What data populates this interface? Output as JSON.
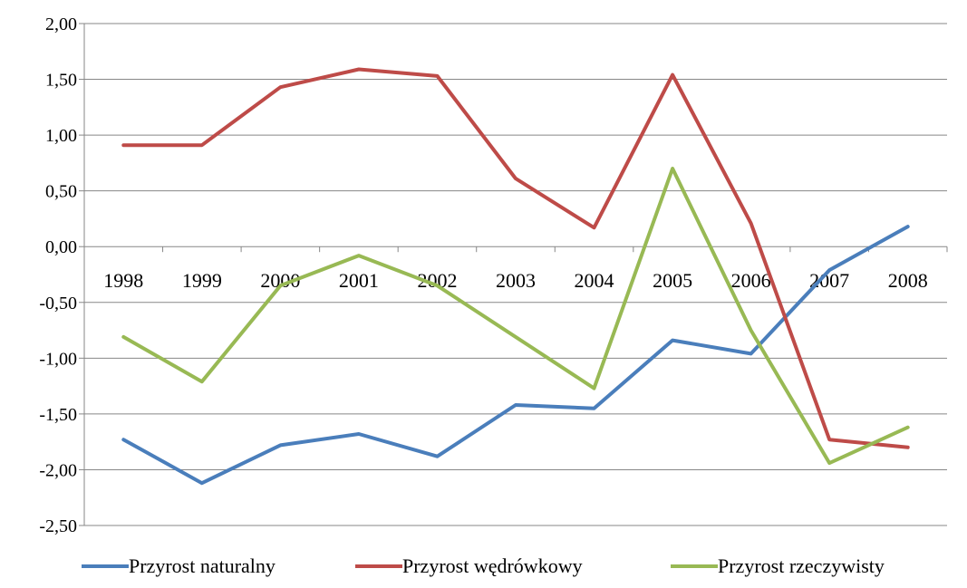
{
  "chart_data": {
    "type": "line",
    "title": "",
    "xlabel": "",
    "ylabel": "",
    "categories": [
      "1998",
      "1999",
      "2000",
      "2001",
      "2002",
      "2003",
      "2004",
      "2005",
      "2006",
      "2007",
      "2008"
    ],
    "ylim": [
      -2.5,
      2.0
    ],
    "yticks": [
      "2,00",
      "1,50",
      "1,00",
      "0,50",
      "0,00",
      "-0,50",
      "-1,00",
      "-1,50",
      "-2,00",
      "-2,50"
    ],
    "ytick_values": [
      2.0,
      1.5,
      1.0,
      0.5,
      0.0,
      -0.5,
      -1.0,
      -1.5,
      -2.0,
      -2.5
    ],
    "grid": true,
    "legend_position": "bottom",
    "series": [
      {
        "name": "Przyrost naturalny",
        "color": "#4a7ebb",
        "values": [
          -1.73,
          -2.12,
          -1.78,
          -1.68,
          -1.88,
          -1.42,
          -1.45,
          -0.84,
          -0.96,
          -0.21,
          0.18
        ]
      },
      {
        "name": "Przyrost wędrówkowy",
        "color": "#be4b48",
        "values": [
          0.91,
          0.91,
          1.43,
          1.59,
          1.53,
          0.61,
          0.17,
          1.54,
          0.21,
          -1.73,
          -1.8
        ]
      },
      {
        "name": "Przyrost rzeczywisty",
        "color": "#98b954",
        "values": [
          -0.81,
          -1.21,
          -0.35,
          -0.08,
          -0.35,
          -0.81,
          -1.27,
          0.7,
          -0.75,
          -1.94,
          -1.62
        ]
      }
    ]
  }
}
